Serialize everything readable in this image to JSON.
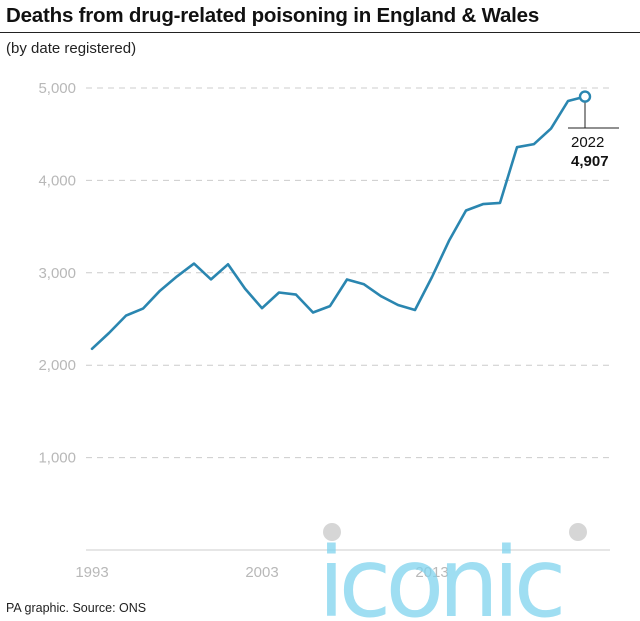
{
  "header": {
    "title": "Deaths from drug-related poisoning in England & Wales",
    "subtitle": "(by date registered)"
  },
  "footer": {
    "source": "PA graphic. Source: ONS"
  },
  "watermark": {
    "text": "iconic",
    "color": "#7fd3ee",
    "dot_color": "#c9c9c9"
  },
  "colors": {
    "line": "#2a86b0",
    "grid": "#cccccc",
    "axis_text": "#b8b8b8"
  },
  "chart_data": {
    "type": "line",
    "x": [
      1993,
      1994,
      1995,
      1996,
      1997,
      1998,
      1999,
      2000,
      2001,
      2002,
      2003,
      2004,
      2005,
      2006,
      2007,
      2008,
      2009,
      2010,
      2011,
      2012,
      2013,
      2014,
      2015,
      2016,
      2017,
      2018,
      2019,
      2020,
      2021,
      2022
    ],
    "series": [
      {
        "values": [
          2178,
          2349,
          2537,
          2613,
          2806,
          2961,
          3100,
          2929,
          3092,
          2829,
          2617,
          2787,
          2764,
          2570,
          2640,
          2928,
          2876,
          2747,
          2652,
          2597,
          2955,
          3346,
          3674,
          3744,
          3756,
          4359,
          4393,
          4561,
          4859,
          4907
        ]
      }
    ],
    "ylim": [
      0,
      5000
    ],
    "yticks": [
      1000,
      2000,
      3000,
      4000,
      5000
    ],
    "ytick_labels": [
      "1,000",
      "2,000",
      "3,000",
      "4,000",
      "5,000"
    ],
    "xticks": [
      1993,
      2003,
      2013
    ],
    "xtick_labels": [
      "1993",
      "2003",
      "2013"
    ],
    "grid": true,
    "annotation": {
      "x": 2022,
      "label_year": "2022",
      "label_value": "4,907"
    }
  }
}
